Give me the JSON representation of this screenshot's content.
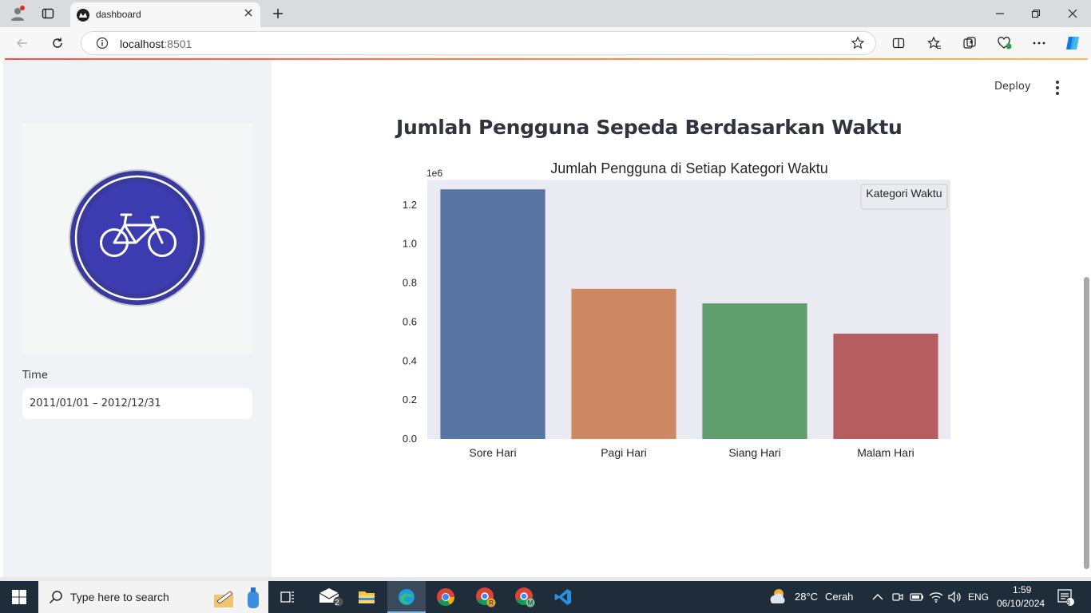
{
  "browser": {
    "tab_title": "dashboard",
    "url_host": "localhost",
    "url_port": ":8501"
  },
  "app": {
    "deploy_label": "Deploy",
    "page_title": "Jumlah Pengguna Sepeda Berdasarkan Waktu",
    "sidebar": {
      "time_label": "Time",
      "date_range": "2011/01/01 – 2012/12/31"
    }
  },
  "chart_data": {
    "type": "bar",
    "title": "Jumlah Pengguna di Setiap Kategori Waktu",
    "xlabel": "",
    "ylabel": "",
    "y_offset_label": "1e6",
    "legend_title": "Kategori Waktu",
    "legend_position": "top-right",
    "categories": [
      "Sore Hari",
      "Pagi Hari",
      "Siang Hari",
      "Malam Hari"
    ],
    "values": [
      1280000,
      770000,
      695000,
      540000
    ],
    "colors": [
      "#5874a2",
      "#cc8963",
      "#5f9e6e",
      "#b55d60"
    ],
    "ylim": [
      0,
      1330000
    ],
    "yticks": [
      0,
      200000,
      400000,
      600000,
      800000,
      1000000,
      1200000
    ],
    "ytick_labels": [
      "0.0",
      "0.2",
      "0.4",
      "0.6",
      "0.8",
      "1.0",
      "1.2"
    ],
    "grid": false,
    "background": "#eaeaf2"
  },
  "taskbar": {
    "search_placeholder": "Type here to search",
    "weather_temp": "28°C",
    "weather_desc": "Cerah",
    "language": "ENG",
    "time": "1:59",
    "date": "06/10/2024",
    "mail_badge": "2",
    "notification_count": "8"
  }
}
